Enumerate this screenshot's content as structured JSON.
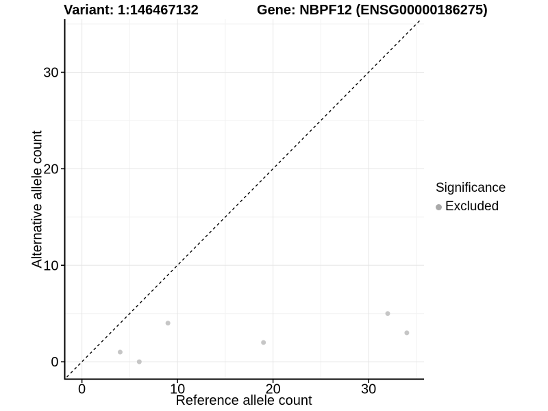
{
  "chart_data": {
    "type": "scatter",
    "titles": {
      "left": "Variant: 1:146467132",
      "right": "Gene: NBPF12 (ENSG00000186275)"
    },
    "xlabel": "Reference allele count",
    "ylabel": "Alternative allele count",
    "xlim": [
      -1.8,
      35.8
    ],
    "ylim": [
      -1.8,
      35.5
    ],
    "x_ticks": [
      0,
      10,
      20,
      30
    ],
    "y_ticks": [
      0,
      10,
      20,
      30
    ],
    "x_minor_ticks": [
      5,
      15,
      25,
      35
    ],
    "y_minor_ticks": [
      5,
      15,
      25,
      35
    ],
    "grid": "major+minor",
    "series": [
      {
        "name": "Excluded",
        "marker": "circle",
        "color": "#c6c6c6",
        "points": [
          {
            "x": 4,
            "y": 1
          },
          {
            "x": 6,
            "y": 0
          },
          {
            "x": 9,
            "y": 4
          },
          {
            "x": 19,
            "y": 2
          },
          {
            "x": 32,
            "y": 5
          },
          {
            "x": 34,
            "y": 3
          }
        ]
      }
    ],
    "reference_line": {
      "slope": 1,
      "intercept": 0,
      "style": "dashed",
      "color": "#000000"
    },
    "legend": {
      "title": "Significance",
      "position": "right",
      "entries": [
        {
          "label": "Excluded",
          "color": "#a9a9a9"
        }
      ]
    },
    "style": {
      "background": "#ffffff",
      "grid_major_color": "#e5e5e5",
      "grid_minor_color": "#f2f2f2",
      "axis_color": "#000000",
      "text_color": "#000000"
    }
  }
}
